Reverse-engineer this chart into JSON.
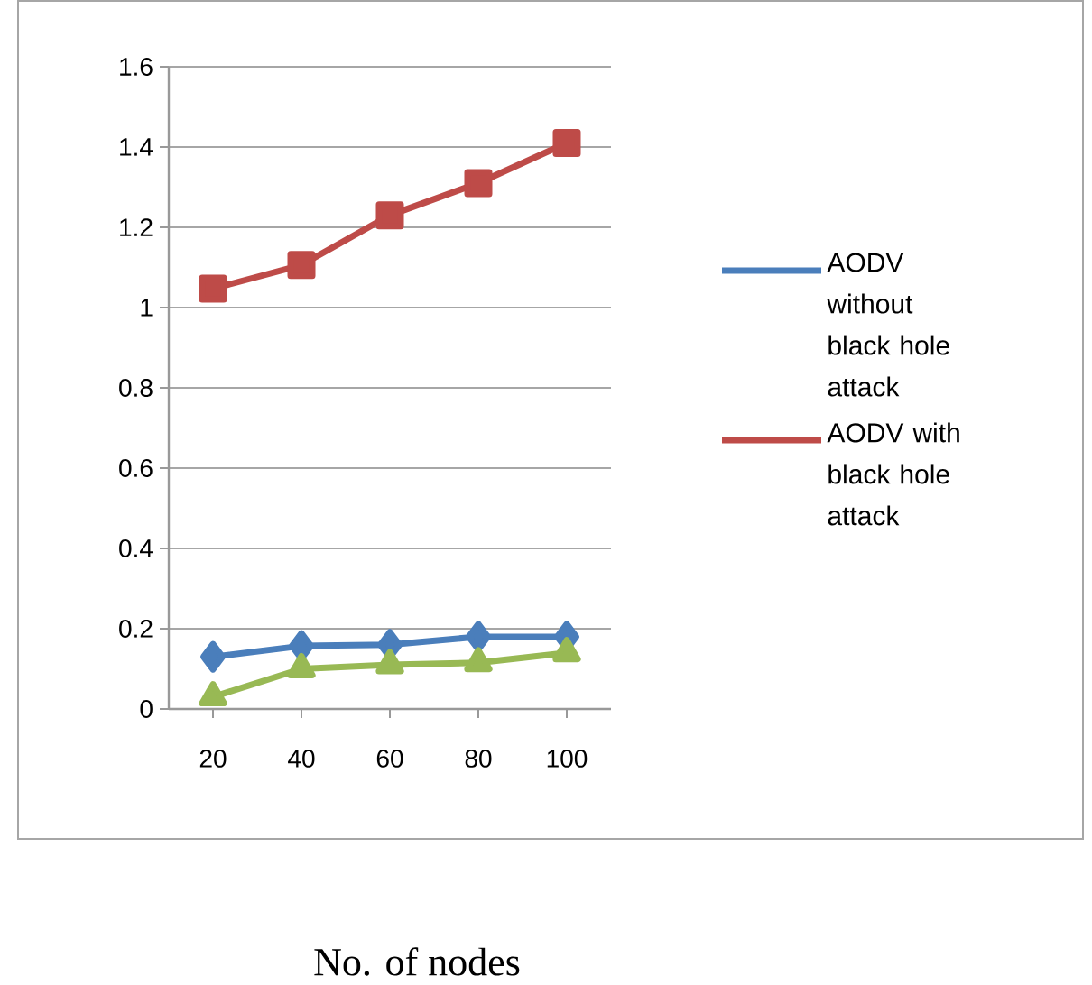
{
  "chart_data": {
    "type": "line",
    "xlabel": "No. of nodes",
    "categories": [
      "20",
      "40",
      "60",
      "80",
      "100"
    ],
    "series": [
      {
        "name": "AODV without black hole attack",
        "color": "#4a7ebb",
        "marker": "diamond",
        "values": [
          0.13,
          0.157,
          0.16,
          0.18,
          0.18
        ]
      },
      {
        "name": "AODV with black hole attack",
        "color": "#be4b48",
        "marker": "square",
        "values": [
          1.047,
          1.106,
          1.23,
          1.31,
          1.41
        ]
      },
      {
        "color": "#98b954",
        "marker": "triangle",
        "values": [
          0.03,
          0.1,
          0.11,
          0.115,
          0.14
        ]
      }
    ],
    "ylim": [
      0,
      1.6
    ],
    "yticks": [
      0,
      0.2,
      0.4,
      0.6,
      0.8,
      1,
      1.2,
      1.4,
      1.6
    ],
    "grid": "y",
    "legend": "right",
    "line_style": "solid"
  }
}
